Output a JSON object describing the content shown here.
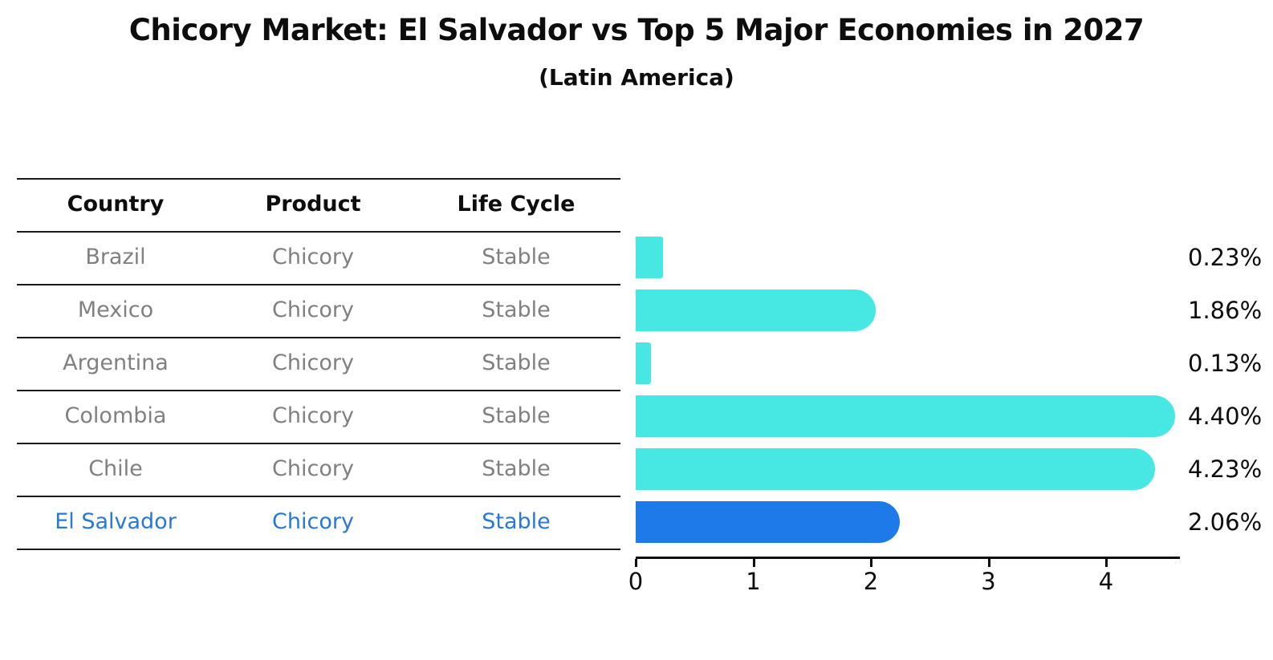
{
  "title": "Chicory Market: El Salvador vs Top 5 Major Economies in 2027",
  "subtitle": "(Latin America)",
  "table": {
    "headers": [
      "Country",
      "Product",
      "Life Cycle"
    ],
    "rows": [
      {
        "country": "Brazil",
        "product": "Chicory",
        "life_cycle": "Stable",
        "highlight": false
      },
      {
        "country": "Mexico",
        "product": "Chicory",
        "life_cycle": "Stable",
        "highlight": false
      },
      {
        "country": "Argentina",
        "product": "Chicory",
        "life_cycle": "Stable",
        "highlight": false
      },
      {
        "country": "Colombia",
        "product": "Chicory",
        "life_cycle": "Stable",
        "highlight": false
      },
      {
        "country": "Chile",
        "product": "Chicory",
        "life_cycle": "Stable",
        "highlight": false
      },
      {
        "country": "El Salvador",
        "product": "Chicory",
        "life_cycle": "Stable",
        "highlight": true
      }
    ]
  },
  "chart_data": {
    "type": "bar",
    "orientation": "horizontal",
    "title": "Chicory Market: El Salvador vs Top 5 Major Economies in 2027",
    "subtitle": "(Latin America)",
    "categories": [
      "Brazil",
      "Mexico",
      "Argentina",
      "Colombia",
      "Chile",
      "El Salvador"
    ],
    "values": [
      0.23,
      1.86,
      0.13,
      4.4,
      4.23,
      2.06
    ],
    "value_labels": [
      "0.23%",
      "1.86%",
      "0.13%",
      "4.40%",
      "4.23%",
      "2.06%"
    ],
    "xticks": [
      "0",
      "1",
      "2",
      "3",
      "4"
    ],
    "xlim": [
      0,
      4.6
    ],
    "grid": false,
    "legend": "none",
    "bar_color": "#47E7E3",
    "highlight": {
      "index": 5,
      "color": "#1E7AE8",
      "edge": "dotted"
    },
    "value_label_position": "right-outside"
  },
  "colors": {
    "bar_cyan": "#47E7E3",
    "bar_blue": "#1E7AE8",
    "highlight_text_blue": "#2878D8",
    "table_text_gray": "#808080",
    "line_black": "#1A1A1A"
  }
}
